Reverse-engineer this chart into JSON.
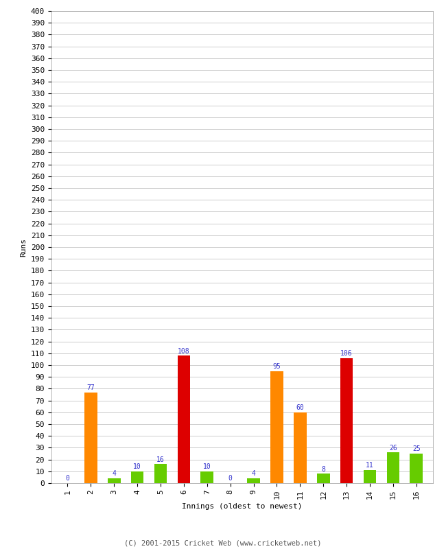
{
  "innings": [
    1,
    2,
    3,
    4,
    5,
    6,
    7,
    8,
    9,
    10,
    11,
    12,
    13,
    14,
    15,
    16
  ],
  "values": [
    0,
    77,
    4,
    10,
    16,
    108,
    10,
    0,
    4,
    95,
    60,
    8,
    106,
    11,
    26,
    25
  ],
  "bar_colors": [
    "#66cc00",
    "#ff8800",
    "#66cc00",
    "#66cc00",
    "#66cc00",
    "#dd0000",
    "#66cc00",
    "#66cc00",
    "#66cc00",
    "#ff8800",
    "#ff8800",
    "#66cc00",
    "#dd0000",
    "#66cc00",
    "#66cc00",
    "#66cc00"
  ],
  "xlabel": "Innings (oldest to newest)",
  "ylabel": "Runs",
  "ylim": [
    0,
    400
  ],
  "ytick_step": 10,
  "label_color": "#3333cc",
  "label_fontsize": 7,
  "background_color": "#ffffff",
  "grid_color": "#cccccc",
  "footer": "(C) 2001-2015 Cricket Web (www.cricketweb.net)",
  "tick_fontsize": 8,
  "axis_label_fontsize": 8
}
